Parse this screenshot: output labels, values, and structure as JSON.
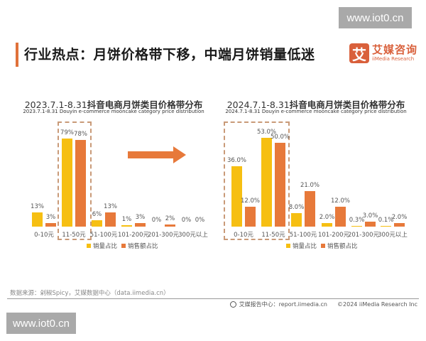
{
  "watermark": "www.iot0.cn",
  "header": {
    "title": "行业热点：月饼价格带下移，中端月饼销量低迷",
    "logo_mark": "艾",
    "logo_cn": "艾媒咨询",
    "logo_en": "iiMedia Research"
  },
  "colors": {
    "volume": "#f6bf12",
    "revenue": "#e7793a",
    "accent": "#e0713a"
  },
  "legend": {
    "volume": "销量占比",
    "revenue": "销售额占比"
  },
  "chart_data": [
    {
      "type": "bar",
      "title": "2023.7.1-8.31抖音电商月饼类目价格带分布",
      "title_prefix": "2023.7.1-8.31",
      "title_suffix": "抖音电商月饼类目价格带分布",
      "subtitle": "2023.7.1-8.31 Douyin e-commerce mooncake category price distribution",
      "categories": [
        "0-10元",
        "11-50元",
        "51-100元",
        "101-200元",
        "201-300元",
        "300元以上"
      ],
      "series": [
        {
          "name": "销量占比",
          "values": [
            13,
            79,
            6,
            1,
            0,
            0
          ],
          "labels": [
            "13%",
            "79%",
            "6%",
            "1%",
            "0%",
            "0%"
          ]
        },
        {
          "name": "销售额占比",
          "values": [
            3,
            78,
            13,
            3,
            2,
            0
          ],
          "labels": [
            "3%",
            "78%",
            "13%",
            "3%",
            "2%",
            "0%"
          ]
        }
      ],
      "highlight": "11-50元",
      "legend_position": "bottom",
      "grid": false
    },
    {
      "type": "bar",
      "title": "2024.7.1-8.31抖音电商月饼类目价格带分布",
      "title_prefix": "2024.7.1-8.31",
      "title_suffix": "抖音电商月饼类目价格带分布",
      "subtitle": "2024.7.1-8.31 Douyin e-commerce mooncake category price distribution",
      "categories": [
        "0-10元",
        "11-50元",
        "51-100元",
        "101-200元",
        "201-300元",
        "300元以上"
      ],
      "series": [
        {
          "name": "销量占比",
          "values": [
            36.0,
            53.0,
            8.0,
            2.0,
            0.3,
            0.1
          ],
          "labels": [
            "36.0%",
            "53.0%",
            "8.0%",
            "2.0%",
            "0.3%",
            "0.1%"
          ]
        },
        {
          "name": "销售额占比",
          "values": [
            12.0,
            50.0,
            21.0,
            12.0,
            3.0,
            2.0
          ],
          "labels": [
            "12.0%",
            "50.0%",
            "21.0%",
            "12.0%",
            "3.0%",
            "2.0%"
          ]
        }
      ],
      "highlight": [
        "0-10元",
        "11-50元"
      ],
      "legend_position": "bottom",
      "grid": false
    }
  ],
  "footer": {
    "source": "数据来源：剁椒Spicy，艾媒数据中心（data.iimedia.cn）",
    "report_center": "艾媒报告中心：report.iimedia.cn",
    "copyright": "©2024  iiMedia Research  Inc"
  }
}
